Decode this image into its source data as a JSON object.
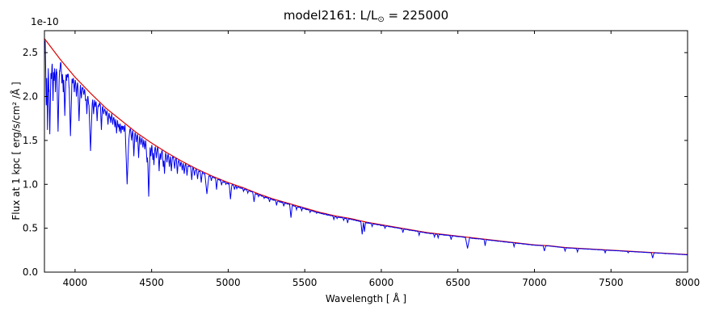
{
  "colors": {
    "spectrum": "#0000ee",
    "continuum": "#dd0000",
    "axes": "#000000",
    "background": "#ffffff"
  },
  "chart_data": {
    "type": "line",
    "title": "model2161: L/L⊙ = 225000",
    "title_parts": {
      "prefix": "model2161: L/L",
      "sub": "⊙",
      "suffix": " = 225000"
    },
    "xlabel": "Wavelength [ Å ]",
    "ylabel": "Flux at 1 kpc [ erg/s/cm² /Å ]",
    "y_offset_text": "1e-10",
    "xlim": [
      3800,
      8000
    ],
    "ylim": [
      0,
      2.75
    ],
    "x_ticks": [
      4000,
      4500,
      5000,
      5500,
      6000,
      6500,
      7000,
      7500,
      8000
    ],
    "y_ticks": [
      0.0,
      0.5,
      1.0,
      1.5,
      2.0,
      2.5
    ],
    "grid": false,
    "legend": "none",
    "series": [
      {
        "name": "spectrum",
        "color": "#0000ee"
      },
      {
        "name": "continuum",
        "color": "#dd0000"
      }
    ],
    "continuum_points": [
      [
        3800,
        2.66
      ],
      [
        3900,
        2.43
      ],
      [
        4000,
        2.22
      ],
      [
        4100,
        2.04
      ],
      [
        4200,
        1.87
      ],
      [
        4300,
        1.73
      ],
      [
        4400,
        1.59
      ],
      [
        4500,
        1.47
      ],
      [
        4600,
        1.36
      ],
      [
        4700,
        1.26
      ],
      [
        4800,
        1.17
      ],
      [
        4900,
        1.09
      ],
      [
        5000,
        1.02
      ],
      [
        5100,
        0.96
      ],
      [
        5200,
        0.89
      ],
      [
        5300,
        0.83
      ],
      [
        5400,
        0.78
      ],
      [
        5500,
        0.73
      ],
      [
        5600,
        0.68
      ],
      [
        5700,
        0.64
      ],
      [
        5800,
        0.61
      ],
      [
        5900,
        0.57
      ],
      [
        6000,
        0.54
      ],
      [
        6100,
        0.51
      ],
      [
        6200,
        0.48
      ],
      [
        6300,
        0.45
      ],
      [
        6400,
        0.43
      ],
      [
        6500,
        0.41
      ],
      [
        6600,
        0.39
      ],
      [
        6700,
        0.37
      ],
      [
        6800,
        0.35
      ],
      [
        6900,
        0.33
      ],
      [
        7000,
        0.31
      ],
      [
        7100,
        0.3
      ],
      [
        7200,
        0.28
      ],
      [
        7300,
        0.27
      ],
      [
        7400,
        0.26
      ],
      [
        7500,
        0.25
      ],
      [
        7600,
        0.24
      ],
      [
        7700,
        0.23
      ],
      [
        7800,
        0.22
      ],
      [
        7900,
        0.21
      ],
      [
        8000,
        0.2
      ]
    ],
    "absorption_lines": [
      [
        3812,
        1.9
      ],
      [
        3820,
        1.62
      ],
      [
        3829,
        2.05
      ],
      [
        3835,
        1.57,
        10
      ],
      [
        3846,
        2.2
      ],
      [
        3856,
        1.95
      ],
      [
        3863,
        2.18
      ],
      [
        3872,
        2.05
      ],
      [
        3880,
        2.25
      ],
      [
        3889,
        1.6,
        10
      ],
      [
        3900,
        2.28
      ],
      [
        3914,
        2.15
      ],
      [
        3923,
        2.05
      ],
      [
        3933,
        1.78,
        9
      ],
      [
        3944,
        2.18
      ],
      [
        3952,
        2.22
      ],
      [
        3961,
        2.1
      ],
      [
        3970,
        1.55,
        11
      ],
      [
        3984,
        2.15
      ],
      [
        3995,
        2.05
      ],
      [
        4009,
        2.0
      ],
      [
        4026,
        1.72,
        9
      ],
      [
        4041,
        1.98
      ],
      [
        4057,
        2.02
      ],
      [
        4069,
        1.95
      ],
      [
        4077,
        1.8
      ],
      [
        4088,
        1.92
      ],
      [
        4101,
        1.38,
        13
      ],
      [
        4111,
        1.9
      ],
      [
        4121,
        1.8
      ],
      [
        4132,
        1.88
      ],
      [
        4144,
        1.72
      ],
      [
        4153,
        1.88
      ],
      [
        4172,
        1.62
      ],
      [
        4187,
        1.8
      ],
      [
        4202,
        1.78
      ],
      [
        4215,
        1.68
      ],
      [
        4227,
        1.75
      ],
      [
        4233,
        1.7
      ],
      [
        4246,
        1.68
      ],
      [
        4260,
        1.65
      ],
      [
        4271,
        1.58
      ],
      [
        4282,
        1.65
      ],
      [
        4290,
        1.6
      ],
      [
        4300,
        1.58
      ],
      [
        4310,
        1.62
      ],
      [
        4320,
        1.6
      ],
      [
        4340,
        1.0,
        14
      ],
      [
        4352,
        1.52
      ],
      [
        4369,
        1.5
      ],
      [
        4384,
        1.32
      ],
      [
        4400,
        1.48
      ],
      [
        4415,
        1.3
      ],
      [
        4430,
        1.45
      ],
      [
        4443,
        1.42
      ],
      [
        4455,
        1.4
      ],
      [
        4470,
        1.25,
        9
      ],
      [
        4481,
        0.86,
        10
      ],
      [
        4495,
        1.32
      ],
      [
        4508,
        1.28
      ],
      [
        4515,
        1.22
      ],
      [
        4531,
        1.3
      ],
      [
        4549,
        1.15
      ],
      [
        4560,
        1.28
      ],
      [
        4576,
        1.2
      ],
      [
        4584,
        1.12
      ],
      [
        4600,
        1.25
      ],
      [
        4616,
        1.2
      ],
      [
        4629,
        1.15
      ],
      [
        4650,
        1.18
      ],
      [
        4668,
        1.12
      ],
      [
        4686,
        1.2
      ],
      [
        4700,
        1.16
      ],
      [
        4713,
        1.12
      ],
      [
        4731,
        1.1
      ],
      [
        4762,
        1.05
      ],
      [
        4780,
        1.1
      ],
      [
        4800,
        1.06
      ],
      [
        4824,
        1.02
      ],
      [
        4861,
        0.89,
        14
      ],
      [
        4890,
        1.04
      ],
      [
        4924,
        0.94
      ],
      [
        4957,
        0.99
      ],
      [
        4985,
        1.0
      ],
      [
        5015,
        0.83,
        9
      ],
      [
        5041,
        0.94
      ],
      [
        5056,
        0.95
      ],
      [
        5100,
        0.92
      ],
      [
        5128,
        0.9
      ],
      [
        5169,
        0.8,
        9
      ],
      [
        5198,
        0.86
      ],
      [
        5235,
        0.84
      ],
      [
        5270,
        0.8
      ],
      [
        5316,
        0.76
      ],
      [
        5363,
        0.75
      ],
      [
        5410,
        0.62,
        9
      ],
      [
        5446,
        0.71
      ],
      [
        5480,
        0.7
      ],
      [
        5535,
        0.68
      ],
      [
        5577,
        0.67
      ],
      [
        5690,
        0.6
      ],
      [
        5711,
        0.61
      ],
      [
        5754,
        0.59
      ],
      [
        5780,
        0.56
      ],
      [
        5875,
        0.43,
        9
      ],
      [
        5890,
        0.46
      ],
      [
        5940,
        0.52
      ],
      [
        6024,
        0.5
      ],
      [
        6141,
        0.45
      ],
      [
        6247,
        0.42
      ],
      [
        6347,
        0.4
      ],
      [
        6371,
        0.39
      ],
      [
        6456,
        0.37
      ],
      [
        6563,
        0.27,
        14
      ],
      [
        6678,
        0.3
      ],
      [
        6867,
        0.29
      ],
      [
        7065,
        0.24,
        9
      ],
      [
        7200,
        0.24
      ],
      [
        7281,
        0.23
      ],
      [
        7462,
        0.22
      ],
      [
        7612,
        0.22
      ],
      [
        7772,
        0.16,
        9
      ]
    ],
    "default_line_halfwidth": 7
  }
}
